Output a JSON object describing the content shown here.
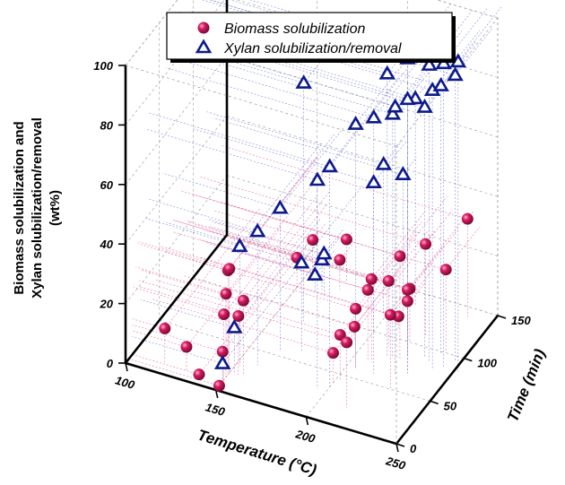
{
  "chart_data": {
    "type": "scatter3d",
    "title": "",
    "xlabel": "Temperature (°C)",
    "ylabel": "Time (min)",
    "zlabel_lines": [
      "Biomass solubilization and",
      "Xylan solubilization/removal",
      "(wt%)"
    ],
    "xlim": [
      100,
      250
    ],
    "ylim": [
      0,
      150
    ],
    "zlim": [
      0,
      100
    ],
    "x_ticks": [
      100,
      150,
      200,
      250
    ],
    "y_ticks": [
      0,
      50,
      100,
      150
    ],
    "z_ticks": [
      0,
      20,
      40,
      60,
      80,
      100
    ],
    "legend_position": "top-center",
    "grid": true,
    "colors": {
      "biomass": "#c2185b",
      "xylan": "#0d1a8c",
      "axes": "#000000"
    },
    "series": [
      {
        "name": "Biomass solubilization",
        "marker": "sphere",
        "points": [
          {
            "x": 118,
            "y": 10,
            "z": 12
          },
          {
            "x": 130,
            "y": 10,
            "z": 8
          },
          {
            "x": 137,
            "y": 10,
            "z": 0
          },
          {
            "x": 150,
            "y": 5,
            "z": 0
          },
          {
            "x": 150,
            "y": 10,
            "z": 10
          },
          {
            "x": 150,
            "y": 12,
            "z": 22
          },
          {
            "x": 150,
            "y": 15,
            "z": 28
          },
          {
            "x": 150,
            "y": 18,
            "z": 35
          },
          {
            "x": 155,
            "y": 20,
            "z": 20
          },
          {
            "x": 157,
            "y": 22,
            "z": 25
          },
          {
            "x": 150,
            "y": 20,
            "z": 35
          },
          {
            "x": 150,
            "y": 120,
            "z": 10
          },
          {
            "x": 155,
            "y": 130,
            "z": 14
          },
          {
            "x": 170,
            "y": 130,
            "z": 10
          },
          {
            "x": 170,
            "y": 140,
            "z": 14
          },
          {
            "x": 195,
            "y": 85,
            "z": 5
          },
          {
            "x": 210,
            "y": 110,
            "z": 4
          },
          {
            "x": 215,
            "y": 110,
            "z": 10
          },
          {
            "x": 200,
            "y": 40,
            "z": 10
          },
          {
            "x": 202,
            "y": 45,
            "z": 15
          },
          {
            "x": 205,
            "y": 60,
            "z": 20
          },
          {
            "x": 208,
            "y": 70,
            "z": 24
          },
          {
            "x": 210,
            "y": 70,
            "z": 28
          },
          {
            "x": 212,
            "y": 90,
            "z": 22
          },
          {
            "x": 220,
            "y": 100,
            "z": 18
          },
          {
            "x": 215,
            "y": 20,
            "z": 22
          },
          {
            "x": 230,
            "y": 70,
            "z": 28
          },
          {
            "x": 237,
            "y": 140,
            "z": 33
          },
          {
            "x": 225,
            "y": 110,
            "z": 31
          },
          {
            "x": 240,
            "y": 100,
            "z": 28
          },
          {
            "x": 228,
            "y": 50,
            "z": 25
          },
          {
            "x": 222,
            "y": 80,
            "z": 35
          }
        ]
      },
      {
        "name": "Xylan solubilization/removal",
        "marker": "triangle",
        "points": [
          {
            "x": 160,
            "y": 120,
            "z": 6
          },
          {
            "x": 162,
            "y": 125,
            "z": 10
          },
          {
            "x": 165,
            "y": 120,
            "z": 14
          },
          {
            "x": 150,
            "y": 10,
            "z": 6
          },
          {
            "x": 152,
            "y": 22,
            "z": 15
          },
          {
            "x": 152,
            "y": 30,
            "z": 40
          },
          {
            "x": 160,
            "y": 35,
            "z": 45
          },
          {
            "x": 165,
            "y": 55,
            "z": 48
          },
          {
            "x": 175,
            "y": 60,
            "z": 30
          },
          {
            "x": 165,
            "y": 90,
            "z": 80
          },
          {
            "x": 198,
            "y": 120,
            "z": 50
          },
          {
            "x": 205,
            "y": 130,
            "z": 45
          },
          {
            "x": 200,
            "y": 100,
            "z": 50
          },
          {
            "x": 210,
            "y": 135,
            "z": 70
          },
          {
            "x": 195,
            "y": 30,
            "z": 70
          },
          {
            "x": 200,
            "y": 35,
            "z": 74
          },
          {
            "x": 205,
            "y": 60,
            "z": 82
          },
          {
            "x": 215,
            "y": 60,
            "z": 86
          },
          {
            "x": 218,
            "y": 80,
            "z": 82
          },
          {
            "x": 215,
            "y": 80,
            "z": 95
          },
          {
            "x": 225,
            "y": 65,
            "z": 90
          },
          {
            "x": 230,
            "y": 70,
            "z": 92
          },
          {
            "x": 240,
            "y": 80,
            "z": 94
          },
          {
            "x": 247,
            "y": 95,
            "z": 96
          },
          {
            "x": 232,
            "y": 90,
            "z": 84
          },
          {
            "x": 238,
            "y": 98,
            "z": 90
          },
          {
            "x": 224,
            "y": 86,
            "z": 100
          },
          {
            "x": 236,
            "y": 86,
            "z": 100
          },
          {
            "x": 244,
            "y": 86,
            "z": 102
          },
          {
            "x": 252,
            "y": 86,
            "z": 104
          }
        ]
      }
    ]
  }
}
